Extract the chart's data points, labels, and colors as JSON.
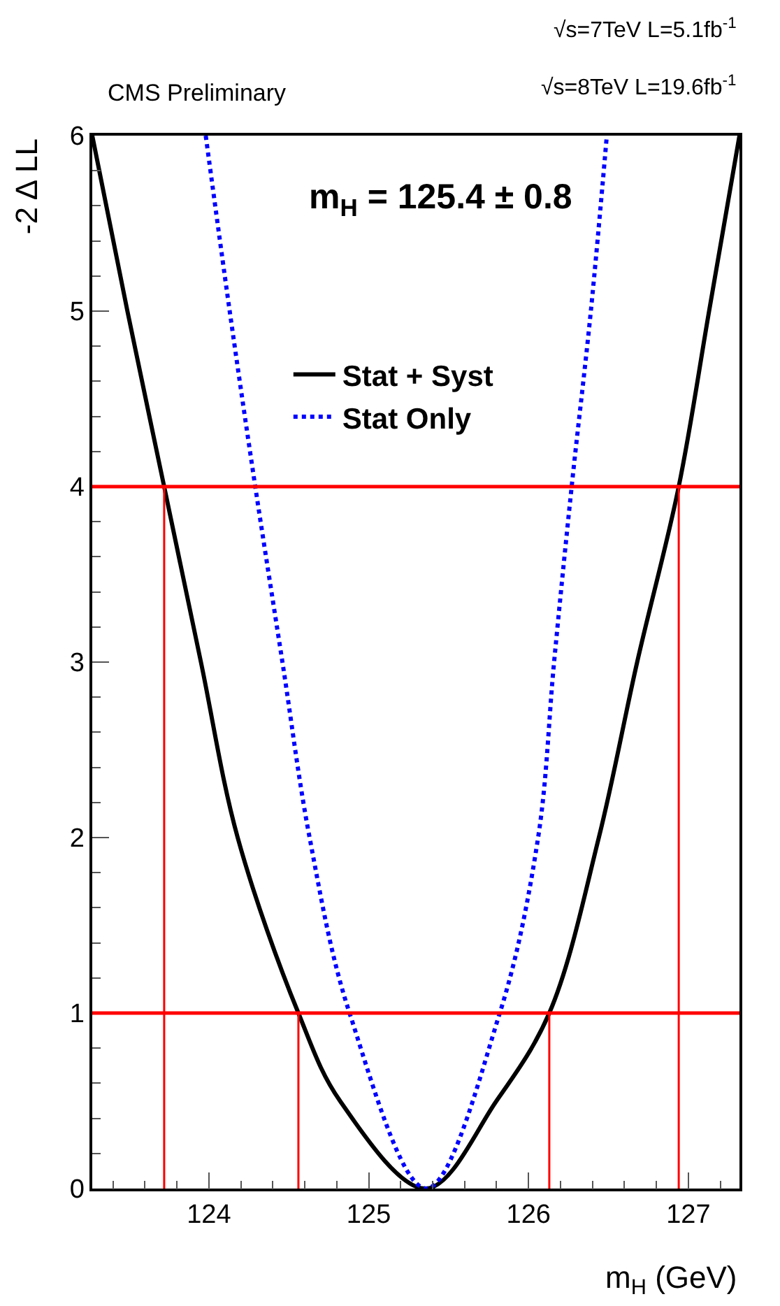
{
  "chart_data": {
    "type": "line",
    "xlabel": "m$_{H}$ (GeV)",
    "ylabel": "-2 Δ LL",
    "annotations": [
      "CMS Preliminary",
      "√s=7TeV L=5.1fb$^{-1}$",
      "√s=8TeV L=19.6fb$^{-1}$",
      "m$_{H}$ = 125.4 ± 0.8"
    ],
    "xlim": [
      123.27,
      127.32
    ],
    "xticks": [
      124,
      125,
      126,
      127
    ],
    "ylim": [
      0,
      6
    ],
    "yticks": [
      0,
      1,
      2,
      3,
      4,
      5,
      6
    ],
    "series": [
      {
        "name": "Stat + Syst",
        "color": "#000000",
        "line_style": "solid",
        "x": [
          123.27,
          123.49,
          123.72,
          123.95,
          124.18,
          124.56,
          124.82,
          125.36,
          125.8,
          126.13,
          126.44,
          126.68,
          126.94,
          127.13,
          127.32
        ],
        "values": [
          6,
          5,
          4,
          3,
          2,
          1,
          0.5,
          0,
          0.5,
          1,
          2,
          3,
          4,
          5,
          6
        ]
      },
      {
        "name": "Stat Only",
        "color": "#0000ff",
        "line_style": "dotted",
        "x": [
          123.98,
          124.13,
          124.29,
          124.46,
          124.63,
          124.88,
          125.36,
          125.82,
          126.06,
          126.16,
          126.27,
          126.39,
          126.49
        ],
        "values": [
          6,
          5,
          4,
          3,
          2,
          1,
          0,
          1,
          2,
          3,
          4,
          5,
          6
        ]
      },
      {
        "color": "#ff0000",
        "line_style": "solid",
        "x": [
          123.72,
          123.72
        ],
        "values": [
          0,
          4
        ]
      },
      {
        "color": "#ff0000",
        "line_style": "solid",
        "x": [
          124.56,
          124.56
        ],
        "values": [
          0,
          1
        ]
      },
      {
        "color": "#ff0000",
        "line_style": "solid",
        "x": [
          126.13,
          126.13
        ],
        "values": [
          0,
          1
        ]
      },
      {
        "color": "#ff0000",
        "line_style": "solid",
        "x": [
          126.94,
          126.94
        ],
        "values": [
          0,
          4
        ]
      }
    ],
    "ref_lines": [
      {
        "axis": "y",
        "value": 1,
        "color": "#ff0000"
      },
      {
        "axis": "y",
        "value": 4,
        "color": "#ff0000"
      }
    ],
    "legend": "top",
    "marker": "none"
  }
}
